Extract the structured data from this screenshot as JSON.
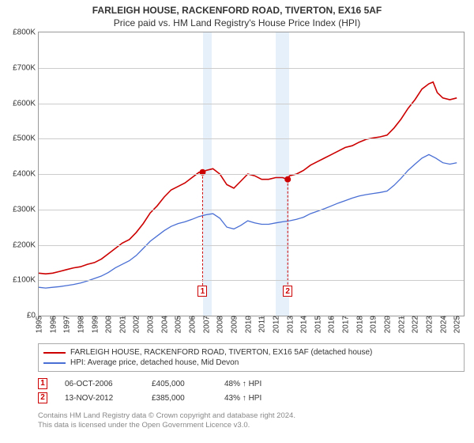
{
  "title": "FARLEIGH HOUSE, RACKENFORD ROAD, TIVERTON, EX16 5AF",
  "subtitle": "Price paid vs. HM Land Registry's House Price Index (HPI)",
  "chart": {
    "type": "line",
    "background_color": "#ffffff",
    "grid_color": "#cccccc",
    "border_color": "#999999",
    "band_color": "#e6f0fa",
    "y": {
      "min": 0,
      "max": 800000,
      "tick_step": 100000,
      "label_prefix": "£",
      "label_suffix": "K",
      "label_divisor": 1000
    },
    "x": {
      "min": 1995,
      "max": 2025.5,
      "ticks": [
        1995,
        1996,
        1997,
        1998,
        1999,
        2000,
        2001,
        2002,
        2003,
        2004,
        2005,
        2006,
        2007,
        2008,
        2009,
        2010,
        2011,
        2012,
        2013,
        2014,
        2015,
        2016,
        2017,
        2018,
        2019,
        2020,
        2021,
        2022,
        2023,
        2024,
        2025
      ]
    },
    "bands": [
      {
        "from": 2006.8,
        "to": 2007.4
      },
      {
        "from": 2012.0,
        "to": 2013.0
      }
    ],
    "series": [
      {
        "name": "FARLEIGH HOUSE, RACKENFORD ROAD, TIVERTON, EX16 5AF (detached house)",
        "color": "#cc0000",
        "width": 1.6,
        "data": [
          [
            1995.0,
            120000
          ],
          [
            1995.5,
            118000
          ],
          [
            1996.0,
            120000
          ],
          [
            1996.5,
            125000
          ],
          [
            1997.0,
            130000
          ],
          [
            1997.5,
            135000
          ],
          [
            1998.0,
            138000
          ],
          [
            1998.5,
            145000
          ],
          [
            1999.0,
            150000
          ],
          [
            1999.5,
            160000
          ],
          [
            2000.0,
            175000
          ],
          [
            2000.5,
            190000
          ],
          [
            2001.0,
            205000
          ],
          [
            2001.5,
            215000
          ],
          [
            2002.0,
            235000
          ],
          [
            2002.5,
            260000
          ],
          [
            2003.0,
            290000
          ],
          [
            2003.5,
            310000
          ],
          [
            2004.0,
            335000
          ],
          [
            2004.5,
            355000
          ],
          [
            2005.0,
            365000
          ],
          [
            2005.5,
            375000
          ],
          [
            2006.0,
            390000
          ],
          [
            2006.5,
            405000
          ],
          [
            2006.76,
            405000
          ],
          [
            2007.0,
            410000
          ],
          [
            2007.5,
            415000
          ],
          [
            2008.0,
            400000
          ],
          [
            2008.5,
            370000
          ],
          [
            2009.0,
            360000
          ],
          [
            2009.5,
            380000
          ],
          [
            2010.0,
            400000
          ],
          [
            2010.5,
            395000
          ],
          [
            2011.0,
            385000
          ],
          [
            2011.5,
            385000
          ],
          [
            2012.0,
            390000
          ],
          [
            2012.5,
            390000
          ],
          [
            2012.87,
            385000
          ],
          [
            2013.0,
            395000
          ],
          [
            2013.5,
            400000
          ],
          [
            2014.0,
            410000
          ],
          [
            2014.5,
            425000
          ],
          [
            2015.0,
            435000
          ],
          [
            2015.5,
            445000
          ],
          [
            2016.0,
            455000
          ],
          [
            2016.5,
            465000
          ],
          [
            2017.0,
            475000
          ],
          [
            2017.5,
            480000
          ],
          [
            2018.0,
            490000
          ],
          [
            2018.5,
            498000
          ],
          [
            2019.0,
            502000
          ],
          [
            2019.5,
            505000
          ],
          [
            2020.0,
            510000
          ],
          [
            2020.5,
            530000
          ],
          [
            2021.0,
            555000
          ],
          [
            2021.5,
            585000
          ],
          [
            2022.0,
            610000
          ],
          [
            2022.5,
            640000
          ],
          [
            2023.0,
            655000
          ],
          [
            2023.3,
            660000
          ],
          [
            2023.6,
            630000
          ],
          [
            2024.0,
            615000
          ],
          [
            2024.5,
            610000
          ],
          [
            2025.0,
            615000
          ]
        ]
      },
      {
        "name": "HPI: Average price, detached house, Mid Devon",
        "color": "#4a6fd4",
        "width": 1.3,
        "data": [
          [
            1995.0,
            80000
          ],
          [
            1995.5,
            78000
          ],
          [
            1996.0,
            80000
          ],
          [
            1996.5,
            82000
          ],
          [
            1997.0,
            85000
          ],
          [
            1997.5,
            88000
          ],
          [
            1998.0,
            92000
          ],
          [
            1998.5,
            98000
          ],
          [
            1999.0,
            105000
          ],
          [
            1999.5,
            112000
          ],
          [
            2000.0,
            122000
          ],
          [
            2000.5,
            135000
          ],
          [
            2001.0,
            145000
          ],
          [
            2001.5,
            155000
          ],
          [
            2002.0,
            170000
          ],
          [
            2002.5,
            190000
          ],
          [
            2003.0,
            210000
          ],
          [
            2003.5,
            225000
          ],
          [
            2004.0,
            240000
          ],
          [
            2004.5,
            252000
          ],
          [
            2005.0,
            260000
          ],
          [
            2005.5,
            265000
          ],
          [
            2006.0,
            272000
          ],
          [
            2006.5,
            280000
          ],
          [
            2007.0,
            285000
          ],
          [
            2007.5,
            288000
          ],
          [
            2008.0,
            275000
          ],
          [
            2008.5,
            250000
          ],
          [
            2009.0,
            245000
          ],
          [
            2009.5,
            255000
          ],
          [
            2010.0,
            268000
          ],
          [
            2010.5,
            262000
          ],
          [
            2011.0,
            258000
          ],
          [
            2011.5,
            258000
          ],
          [
            2012.0,
            262000
          ],
          [
            2012.5,
            265000
          ],
          [
            2013.0,
            268000
          ],
          [
            2013.5,
            272000
          ],
          [
            2014.0,
            278000
          ],
          [
            2014.5,
            288000
          ],
          [
            2015.0,
            295000
          ],
          [
            2015.5,
            302000
          ],
          [
            2016.0,
            310000
          ],
          [
            2016.5,
            318000
          ],
          [
            2017.0,
            325000
          ],
          [
            2017.5,
            332000
          ],
          [
            2018.0,
            338000
          ],
          [
            2018.5,
            342000
          ],
          [
            2019.0,
            345000
          ],
          [
            2019.5,
            348000
          ],
          [
            2020.0,
            352000
          ],
          [
            2020.5,
            368000
          ],
          [
            2021.0,
            388000
          ],
          [
            2021.5,
            410000
          ],
          [
            2022.0,
            428000
          ],
          [
            2022.5,
            445000
          ],
          [
            2023.0,
            455000
          ],
          [
            2023.5,
            445000
          ],
          [
            2024.0,
            432000
          ],
          [
            2024.5,
            428000
          ],
          [
            2025.0,
            432000
          ]
        ]
      }
    ],
    "sale_markers": [
      {
        "num": "1",
        "x": 2006.76,
        "y": 405000,
        "box_y": 85000
      },
      {
        "num": "2",
        "x": 2012.87,
        "y": 385000,
        "box_y": 85000
      }
    ],
    "marker_dot_color": "#cc0000",
    "marker_dot_radius": 4
  },
  "legend": {
    "items": [
      {
        "color": "#cc0000",
        "label": "FARLEIGH HOUSE, RACKENFORD ROAD, TIVERTON, EX16 5AF (detached house)"
      },
      {
        "color": "#4a6fd4",
        "label": "HPI: Average price, detached house, Mid Devon"
      }
    ]
  },
  "sales": [
    {
      "num": "1",
      "date": "06-OCT-2006",
      "price": "£405,000",
      "rel": "48% ↑ HPI"
    },
    {
      "num": "2",
      "date": "13-NOV-2012",
      "price": "£385,000",
      "rel": "43% ↑ HPI"
    }
  ],
  "attribution": {
    "line1": "Contains HM Land Registry data © Crown copyright and database right 2024.",
    "line2": "This data is licensed under the Open Government Licence v3.0."
  }
}
